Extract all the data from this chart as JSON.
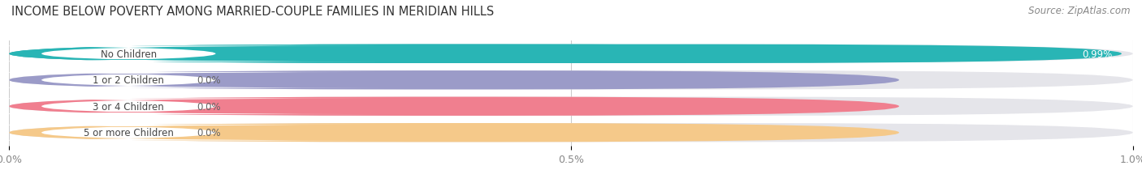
{
  "title": "INCOME BELOW POVERTY AMONG MARRIED-COUPLE FAMILIES IN MERIDIAN HILLS",
  "source": "Source: ZipAtlas.com",
  "categories": [
    "No Children",
    "1 or 2 Children",
    "3 or 4 Children",
    "5 or more Children"
  ],
  "values": [
    0.99,
    0.0,
    0.0,
    0.0
  ],
  "bar_colors": [
    "#29b5b5",
    "#9b9bc8",
    "#f07f8f",
    "#f5c98a"
  ],
  "track_color": "#e5e5ea",
  "xlim_max": 1.0,
  "xticks": [
    0.0,
    0.5,
    1.0
  ],
  "xtick_labels": [
    "0.0%",
    "0.5%",
    "1.0%"
  ],
  "value_labels": [
    "0.99%",
    "0.0%",
    "0.0%",
    "0.0%"
  ],
  "background_color": "#ffffff",
  "title_fontsize": 10.5,
  "source_fontsize": 8.5,
  "label_fontsize": 8.5,
  "value_fontsize": 8.5
}
